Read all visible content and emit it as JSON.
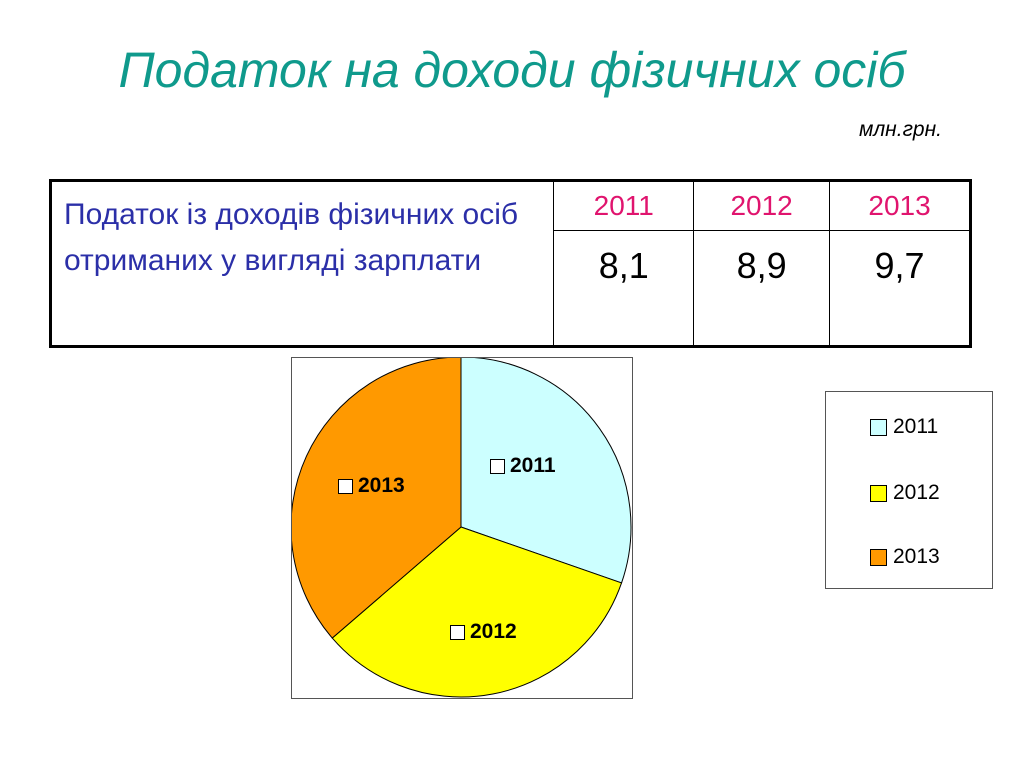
{
  "slide": {
    "title": "Податок на доходи фізичних осіб",
    "unit": "млн.грн."
  },
  "table": {
    "row_label": "Податок із доходів фізичних осіб отриманих у вигляді зарплати",
    "years": [
      "2011",
      "2012",
      "2013"
    ],
    "values": [
      "8,1",
      "8,9",
      "9,7"
    ]
  },
  "chart_data": {
    "type": "pie",
    "categories": [
      "2011",
      "2012",
      "2013"
    ],
    "values": [
      8.1,
      8.9,
      9.7
    ],
    "colors": [
      "#ccffff",
      "#ffff00",
      "#ff9900"
    ],
    "slice_labels": [
      "2011",
      "2012",
      "2013"
    ],
    "legend": {
      "placement": "right",
      "entries": [
        "2011",
        "2012",
        "2013"
      ]
    }
  }
}
